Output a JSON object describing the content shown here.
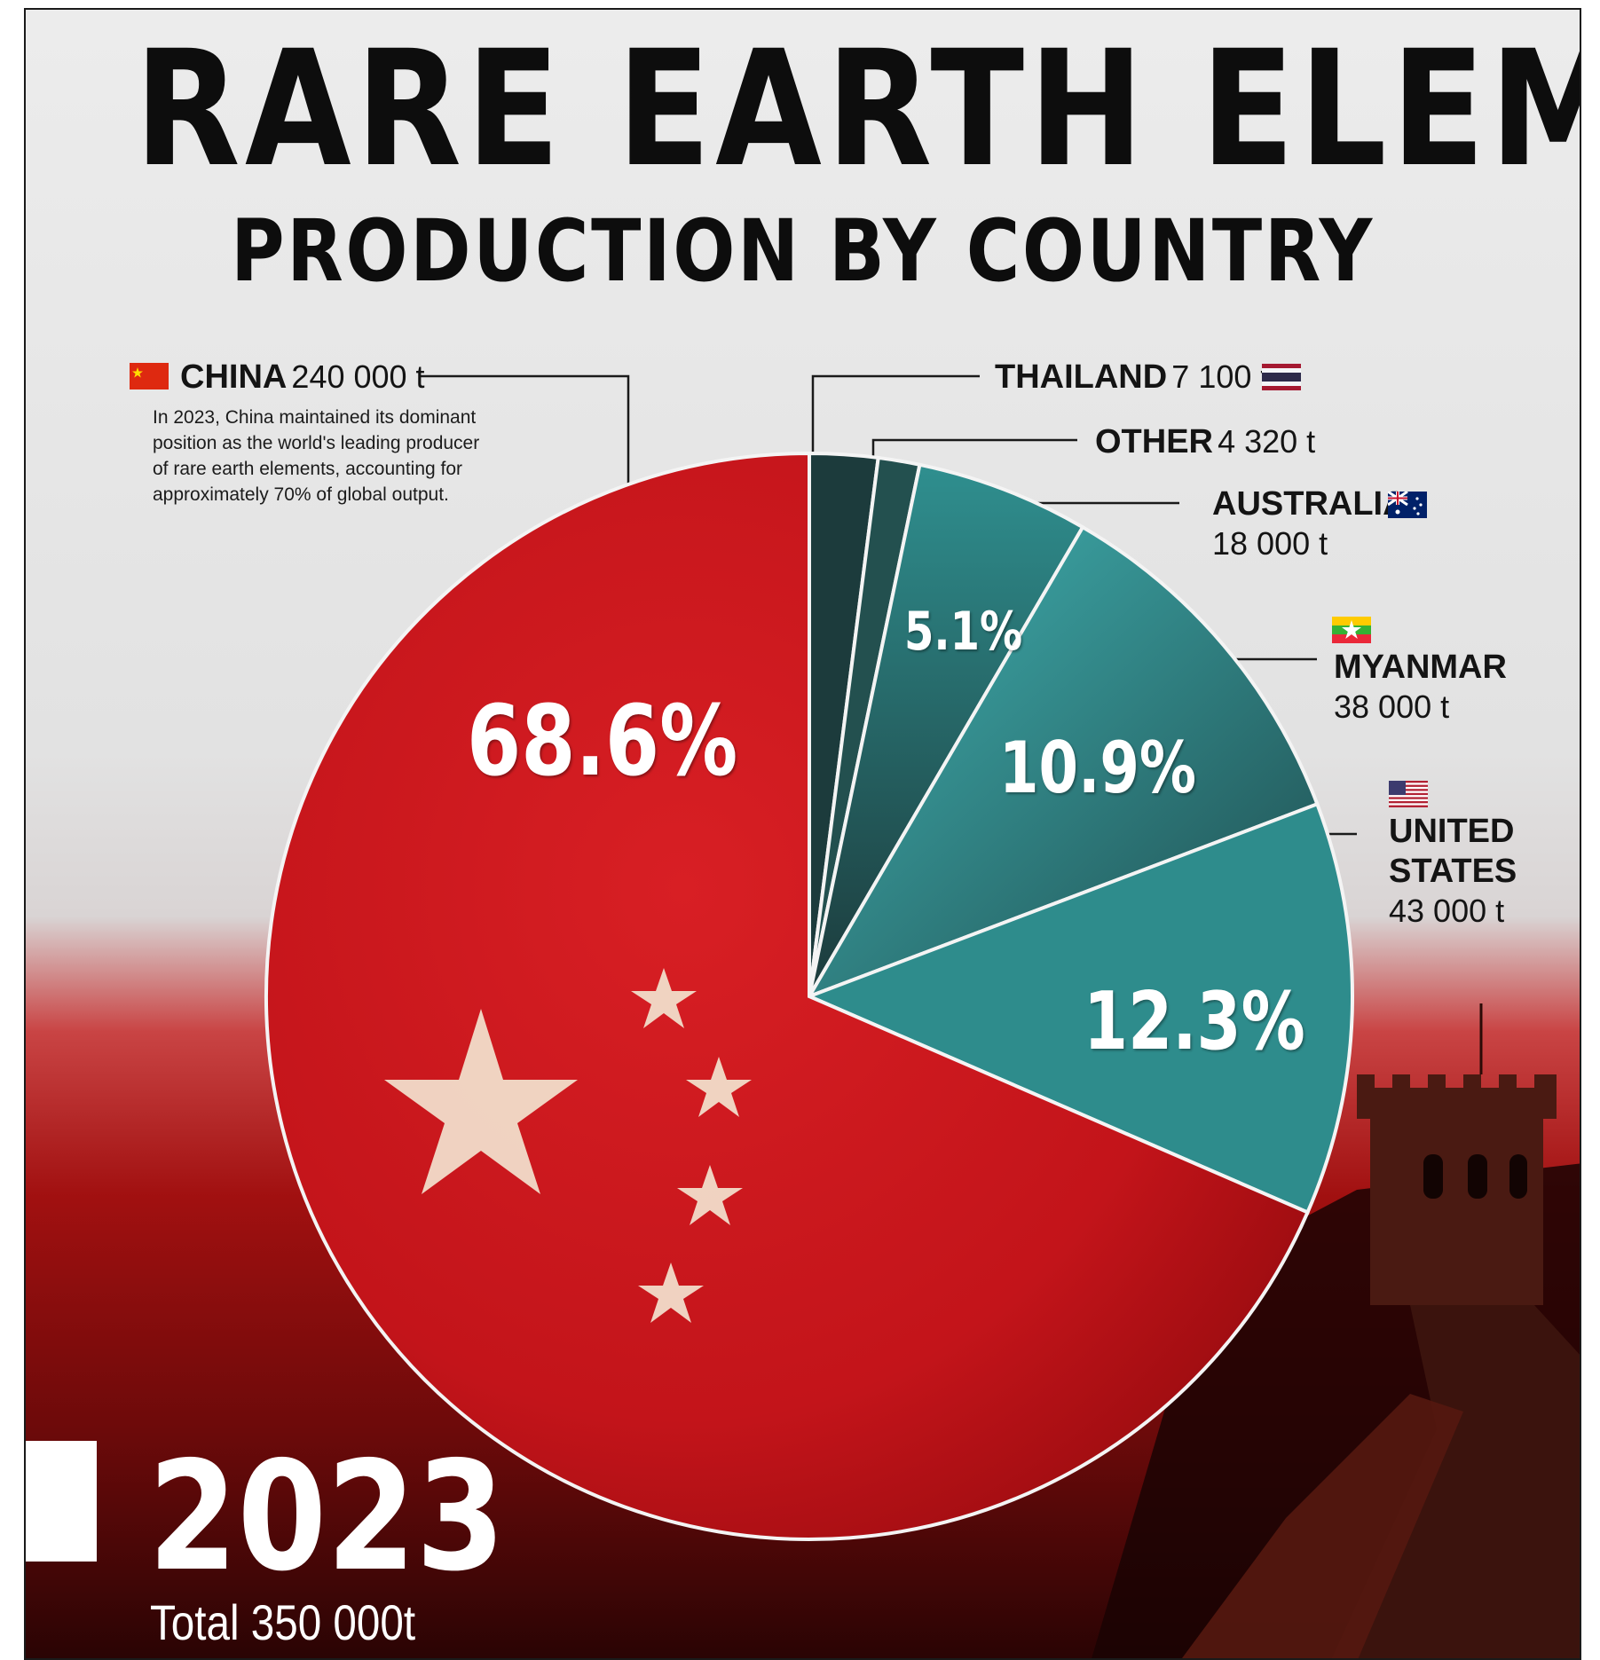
{
  "title": "RARE EARTH ELEMENT",
  "subtitle": "PRODUCTION BY COUNTRY",
  "china_note": "In 2023, China maintained its dominant position as the world's leading producer of rare earth elements, accounting for approximately 70% of global output.",
  "year": "2023",
  "total": "Total 350 000t",
  "colors": {
    "china": "#c8141a",
    "teal_dark": "#1d3c3c",
    "teal_mid": "#2a7b7b",
    "teal_light": "#3aa5a5"
  },
  "labels": {
    "china": {
      "name": "CHINA",
      "value": "240 000 t"
    },
    "thailand": {
      "name": "THAILAND",
      "value": "7 100 t"
    },
    "other": {
      "name": "OTHER",
      "value": "4 320 t"
    },
    "australia": {
      "name": "AUSTRALIA",
      "value": "18 000 t"
    },
    "myanmar": {
      "name": "MYANMAR",
      "value": "38 000 t"
    },
    "united_states": {
      "name_1": "UNITED",
      "name_2": "STATES",
      "value": "43 000 t"
    }
  },
  "chart_data": {
    "type": "pie",
    "title": "RARE EARTH ELEMENT PRODUCTION BY COUNTRY",
    "categories": [
      "Thailand",
      "Other",
      "Australia",
      "Myanmar",
      "United States",
      "China"
    ],
    "values": [
      7100,
      4320,
      18000,
      38000,
      43000,
      240000
    ],
    "unit": "t",
    "percent_labels": {
      "China": "68.6%",
      "United States": "12.3%",
      "Myanmar": "10.9%",
      "Australia": "5.1%"
    },
    "total": 350000
  }
}
